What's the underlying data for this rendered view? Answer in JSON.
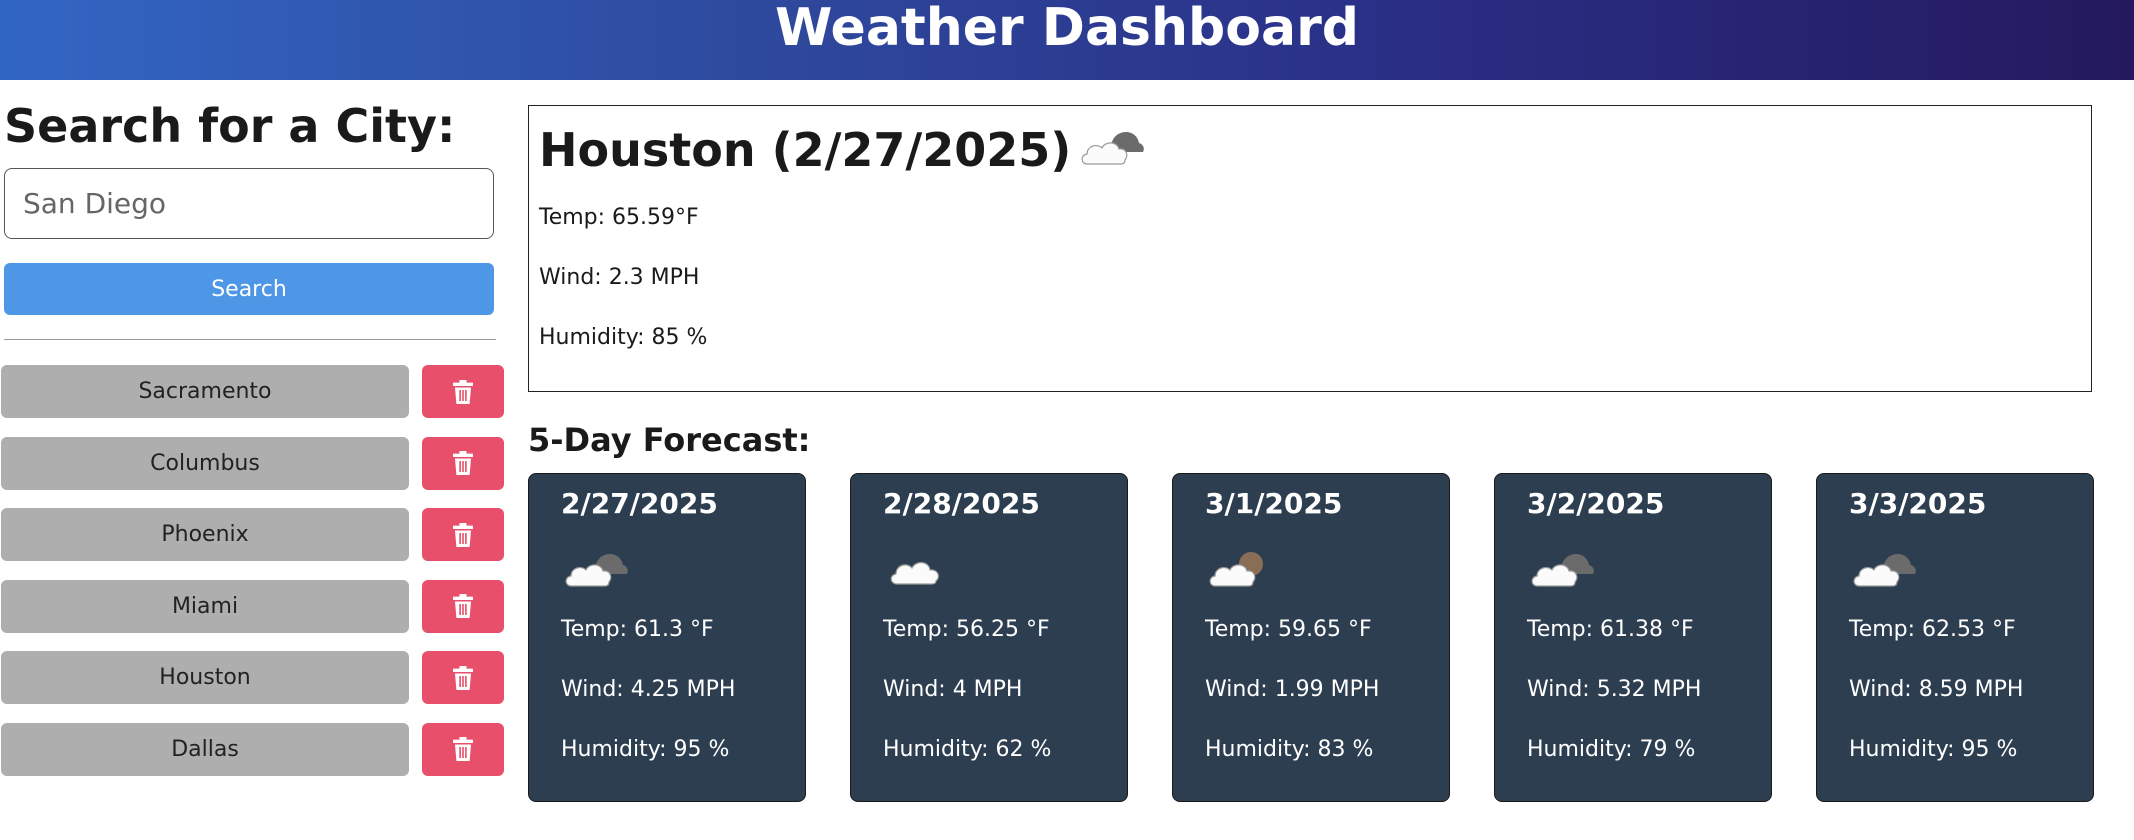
{
  "header": {
    "title": "Weather Dashboard"
  },
  "search": {
    "title": "Search for a City:",
    "input_value": "",
    "placeholder": "San Diego",
    "button_label": "Search"
  },
  "history": [
    {
      "city": "Sacramento",
      "delete_icon": "trash-icon"
    },
    {
      "city": "Columbus",
      "delete_icon": "trash-icon"
    },
    {
      "city": "Phoenix",
      "delete_icon": "trash-icon"
    },
    {
      "city": "Miami",
      "delete_icon": "trash-icon"
    },
    {
      "city": "Houston",
      "delete_icon": "trash-icon"
    },
    {
      "city": "Dallas",
      "delete_icon": "trash-icon"
    }
  ],
  "current": {
    "heading": "Houston (2/27/2025)",
    "icon": "cloud-sun-icon",
    "temp": "Temp: 65.59°F",
    "wind": "Wind: 2.3 MPH",
    "humidity": "Humidity: 85 %"
  },
  "forecast": {
    "title": "5-Day Forecast:",
    "days": [
      {
        "date": "2/27/2025",
        "icon": "cloud-sun-icon",
        "temp": "Temp: 61.3 °F",
        "wind": "Wind: 4.25 MPH",
        "humidity": "Humidity: 95 %"
      },
      {
        "date": "2/28/2025",
        "icon": "cloud-icon",
        "temp": "Temp: 56.25 °F",
        "wind": "Wind: 4 MPH",
        "humidity": "Humidity: 62 %"
      },
      {
        "date": "3/1/2025",
        "icon": "cloud-moon-icon",
        "temp": "Temp: 59.65 °F",
        "wind": "Wind: 1.99 MPH",
        "humidity": "Humidity: 83 %"
      },
      {
        "date": "3/2/2025",
        "icon": "cloud-sun-icon",
        "temp": "Temp: 61.38 °F",
        "wind": "Wind: 5.32 MPH",
        "humidity": "Humidity: 79 %"
      },
      {
        "date": "3/3/2025",
        "icon": "cloud-sun-icon",
        "temp": "Temp: 62.53 °F",
        "wind": "Wind: 8.59 MPH",
        "humidity": "Humidity: 95 %"
      }
    ]
  },
  "colors": {
    "header_start": "#3266c4",
    "header_end": "#24195e",
    "search_button": "#4e97e6",
    "city_button": "#aeaeae",
    "delete_button": "#e84f6a",
    "card_background": "#2d3e50"
  }
}
